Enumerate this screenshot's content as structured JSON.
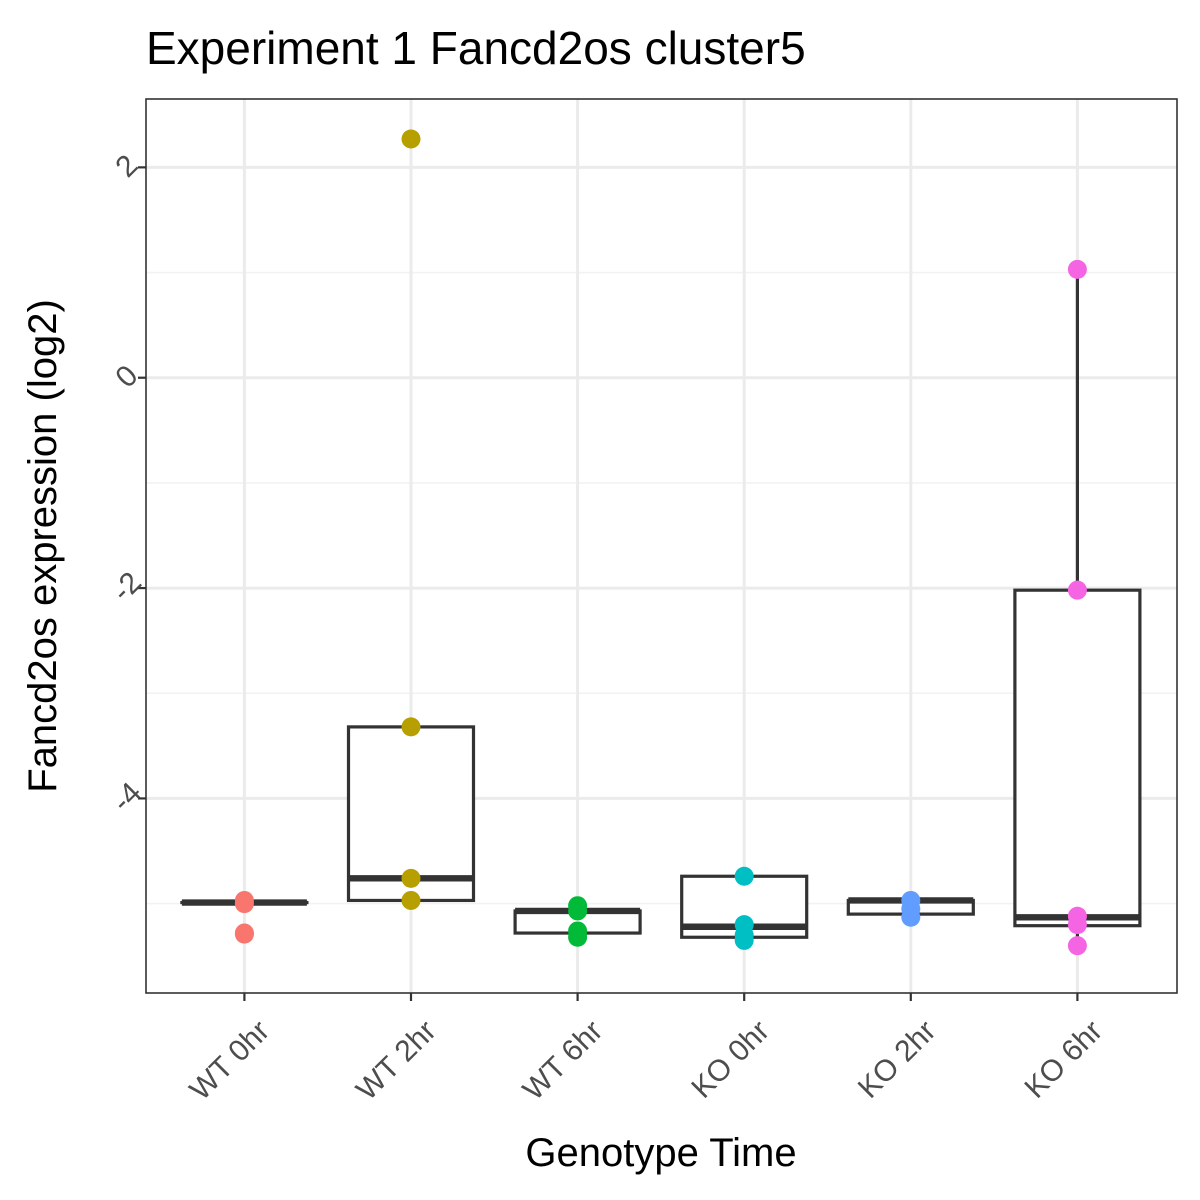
{
  "chart_data": {
    "type": "box",
    "title": "Experiment 1 Fancd2os cluster5",
    "xlabel": "Genotype Time",
    "ylabel": "Fancd2os expression (log2)",
    "categories": [
      "WT 0hr",
      "WT 2hr",
      "WT 6hr",
      "KO 0hr",
      "KO 2hr",
      "KO 6hr"
    ],
    "ylim": [
      -5.85,
      2.65
    ],
    "yticks": [
      -4,
      -2,
      0,
      2
    ],
    "ytick_labels": [
      "-4",
      "-2",
      "0",
      "2"
    ],
    "grid": true,
    "legend": "none",
    "colors": [
      "#f8766d",
      "#b79f00",
      "#00ba38",
      "#00bfc4",
      "#619cff",
      "#f564e3"
    ],
    "boxes": [
      {
        "category": "WT 0hr",
        "lower": -4.99,
        "q1": -4.99,
        "median": -4.99,
        "q3": -4.99,
        "upper": -4.99
      },
      {
        "category": "WT 2hr",
        "lower": -4.97,
        "q1": -4.97,
        "median": -4.76,
        "q3": -3.32,
        "upper": -3.32
      },
      {
        "category": "WT 6hr",
        "lower": -5.28,
        "q1": -5.28,
        "median": -5.07,
        "q3": -5.07,
        "upper": -5.07
      },
      {
        "category": "KO 0hr",
        "lower": -5.32,
        "q1": -5.32,
        "median": -5.22,
        "q3": -4.74,
        "upper": -4.74
      },
      {
        "category": "KO 2hr",
        "lower": -5.1,
        "q1": -5.1,
        "median": -4.97,
        "q3": -4.97,
        "upper": -4.97
      },
      {
        "category": "KO 6hr",
        "lower": -5.4,
        "q1": -5.21,
        "median": -5.13,
        "q3": -2.02,
        "upper": 1.03
      }
    ],
    "points": [
      {
        "category": "WT 0hr",
        "values": [
          -4.97,
          -5.0,
          -5.28,
          -5.29
        ]
      },
      {
        "category": "WT 2hr",
        "values": [
          2.27,
          -3.32,
          -4.76,
          -4.97
        ]
      },
      {
        "category": "WT 6hr",
        "values": [
          -5.02,
          -5.07,
          -5.26,
          -5.32
        ]
      },
      {
        "category": "KO 0hr",
        "values": [
          -4.74,
          -5.2,
          -5.3,
          -5.35
        ]
      },
      {
        "category": "KO 2hr",
        "values": [
          -4.97,
          -5.05,
          -5.13
        ]
      },
      {
        "category": "KO 6hr",
        "values": [
          1.03,
          -2.02,
          -5.12,
          -5.2,
          -5.4
        ]
      }
    ]
  }
}
